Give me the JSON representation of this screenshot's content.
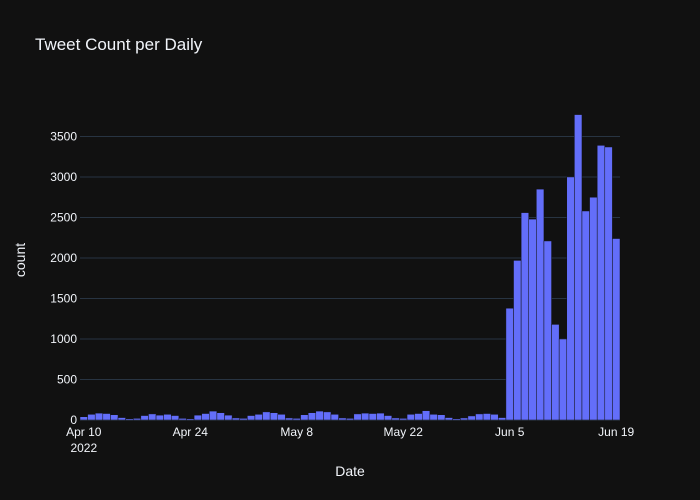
{
  "chart_data": {
    "type": "bar",
    "title": "Tweet Count per Daily",
    "xlabel": "Date",
    "ylabel": "count",
    "x_start": "2022-04-10",
    "x_end": "2022-06-19",
    "ylim": [
      0,
      3950
    ],
    "y_ticks": [
      0,
      500,
      1000,
      1500,
      2000,
      2500,
      3000,
      3500
    ],
    "y_tick_labels": [
      "0",
      "500",
      "1000",
      "1500",
      "2000",
      "2500",
      "3000",
      "3500"
    ],
    "x_ticks": [
      "2022-04-10",
      "2022-04-24",
      "2022-05-08",
      "2022-05-22",
      "2022-06-05",
      "2022-06-19"
    ],
    "x_tick_labels": [
      "Apr 10",
      "Apr 24",
      "May 8",
      "May 22",
      "Jun 5",
      "Jun 19"
    ],
    "x_tick_sublabel": "2022",
    "grid": true,
    "color": "#636efa",
    "dates": [
      "2022-04-10",
      "2022-04-11",
      "2022-04-12",
      "2022-04-13",
      "2022-04-14",
      "2022-04-15",
      "2022-04-16",
      "2022-04-17",
      "2022-04-18",
      "2022-04-19",
      "2022-04-20",
      "2022-04-21",
      "2022-04-22",
      "2022-04-23",
      "2022-04-24",
      "2022-04-25",
      "2022-04-26",
      "2022-04-27",
      "2022-04-28",
      "2022-04-29",
      "2022-04-30",
      "2022-05-01",
      "2022-05-02",
      "2022-05-03",
      "2022-05-04",
      "2022-05-05",
      "2022-05-06",
      "2022-05-07",
      "2022-05-08",
      "2022-05-09",
      "2022-05-10",
      "2022-05-11",
      "2022-05-12",
      "2022-05-13",
      "2022-05-14",
      "2022-05-15",
      "2022-05-16",
      "2022-05-17",
      "2022-05-18",
      "2022-05-19",
      "2022-05-20",
      "2022-05-21",
      "2022-05-22",
      "2022-05-23",
      "2022-05-24",
      "2022-05-25",
      "2022-05-26",
      "2022-05-27",
      "2022-05-28",
      "2022-05-29",
      "2022-05-30",
      "2022-05-31",
      "2022-06-01",
      "2022-06-02",
      "2022-06-03",
      "2022-06-04",
      "2022-06-05",
      "2022-06-06",
      "2022-06-07",
      "2022-06-08",
      "2022-06-09",
      "2022-06-10",
      "2022-06-11",
      "2022-06-12",
      "2022-06-13",
      "2022-06-14",
      "2022-06-15",
      "2022-06-16",
      "2022-06-17",
      "2022-06-18",
      "2022-06-19"
    ],
    "values": [
      40,
      70,
      85,
      80,
      65,
      30,
      15,
      20,
      55,
      75,
      60,
      70,
      55,
      20,
      15,
      60,
      80,
      110,
      90,
      60,
      25,
      20,
      55,
      70,
      100,
      90,
      70,
      25,
      20,
      65,
      90,
      110,
      100,
      70,
      25,
      20,
      75,
      85,
      80,
      85,
      55,
      25,
      20,
      70,
      80,
      115,
      70,
      65,
      30,
      15,
      25,
      50,
      75,
      80,
      70,
      30,
      1380,
      1970,
      2560,
      2480,
      2850,
      2210,
      1180,
      1000,
      3000,
      3770,
      2580,
      2750,
      3390,
      3370,
      2240
    ]
  }
}
